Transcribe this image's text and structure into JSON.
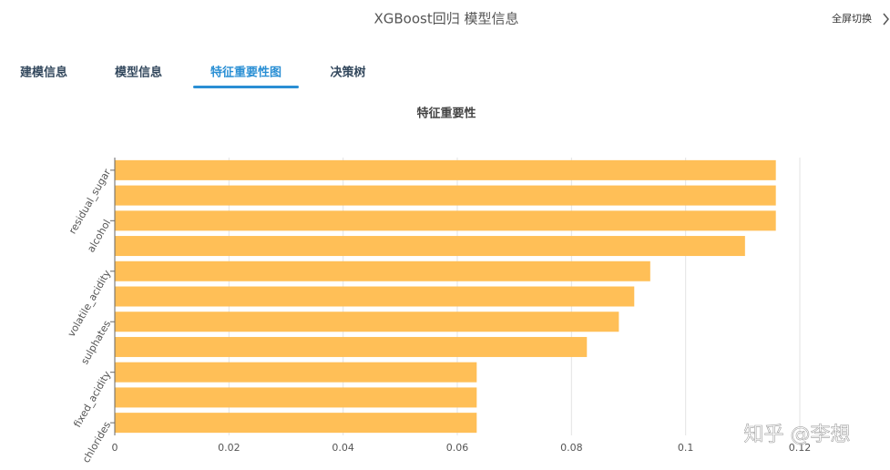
{
  "header": {
    "title": "XGBoost回归 模型信息",
    "fullscreen": "全屏切换"
  },
  "tabs": [
    "建模信息",
    "模型信息",
    "特征重要性图",
    "决策树"
  ],
  "active_tab": 2,
  "watermark": "知乎 @李想",
  "chart_data": {
    "type": "hbar",
    "title": "特征重要性",
    "categories": [
      "residual_sugar",
      null,
      "alcohol",
      null,
      "volatile_acidity",
      null,
      "sulphates",
      null,
      "fixed_acidity",
      null,
      "chlorides"
    ],
    "values": [
      0.1158,
      0.1158,
      0.1158,
      0.1104,
      0.0938,
      0.091,
      0.0883,
      0.0827,
      0.0634,
      0.0634,
      0.0634
    ],
    "color": "#ffbf57",
    "xlim": [
      0,
      0.12
    ],
    "xticks": [
      0,
      0.02,
      0.04,
      0.06,
      0.08,
      0.1,
      0.12
    ],
    "grid": true
  }
}
